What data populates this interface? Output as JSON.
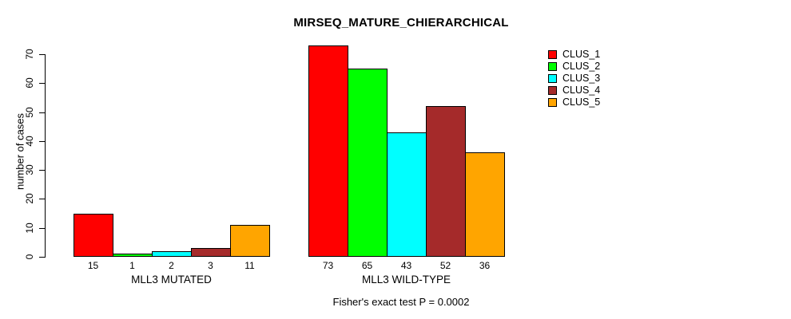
{
  "title": "MIRSEQ_MATURE_CHIERARCHICAL",
  "footer": "Fisher's exact test P = 0.0002",
  "chart_data": {
    "type": "bar",
    "title": "MIRSEQ_MATURE_CHIERARCHICAL",
    "ylabel": "number of cases",
    "xlabel": "",
    "ylim": [
      0,
      70
    ],
    "yticks": [
      0,
      10,
      20,
      30,
      40,
      50,
      60,
      70
    ],
    "grid": false,
    "legend_position": "top-right",
    "categories": [
      "MLL3 MUTATED",
      "MLL3 WILD-TYPE"
    ],
    "series": [
      {
        "name": "CLUS_1",
        "color": "#FF0000",
        "values": [
          15,
          73
        ]
      },
      {
        "name": "CLUS_2",
        "color": "#00FF00",
        "values": [
          1,
          65
        ]
      },
      {
        "name": "CLUS_3",
        "color": "#00FFFF",
        "values": [
          2,
          43
        ]
      },
      {
        "name": "CLUS_4",
        "color": "#A52A2A",
        "values": [
          3,
          52
        ]
      },
      {
        "name": "CLUS_5",
        "color": "#FFA500",
        "values": [
          11,
          36
        ]
      }
    ],
    "bar_value_labels": {
      "MLL3 MUTATED": [
        "15",
        "1",
        "2",
        "3",
        "11"
      ],
      "MLL3 WILD-TYPE": [
        "73",
        "65",
        "43",
        "52",
        "36"
      ]
    },
    "annotation": "Fisher's exact test P = 0.0002",
    "axis_color": "#000000",
    "bar_border_color": "#000000",
    "background": "#FFFFFF"
  }
}
